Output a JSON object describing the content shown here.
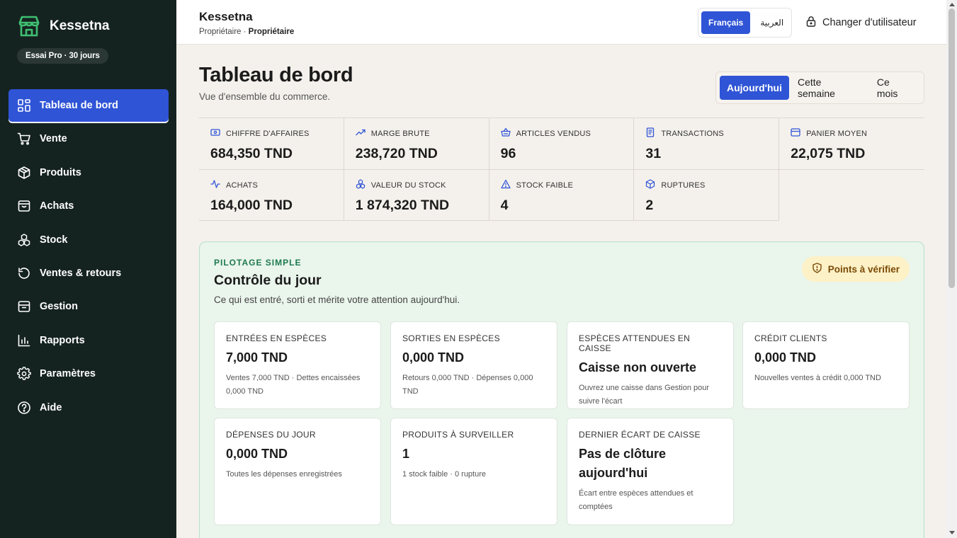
{
  "sidebar": {
    "brand": "Kessetna",
    "trial": "Essai Pro · 30 jours",
    "items": [
      {
        "label": "Tableau de bord",
        "icon": "grid-icon"
      },
      {
        "label": "Vente",
        "icon": "cart-icon"
      },
      {
        "label": "Produits",
        "icon": "box-icon"
      },
      {
        "label": "Achats",
        "icon": "bag-icon"
      },
      {
        "label": "Stock",
        "icon": "boxes-icon"
      },
      {
        "label": "Ventes & retours",
        "icon": "rotate-icon"
      },
      {
        "label": "Gestion",
        "icon": "inbox-icon"
      },
      {
        "label": "Rapports",
        "icon": "bar-chart-icon"
      },
      {
        "label": "Paramètres",
        "icon": "gear-icon"
      },
      {
        "label": "Aide",
        "icon": "help-icon"
      }
    ]
  },
  "topbar": {
    "shop_name": "Kessetna",
    "role_prefix": "Propriétaire · ",
    "role": "Propriétaire",
    "lang_fr": "Français",
    "lang_ar": "العربية",
    "switch_user": "Changer d'utilisateur"
  },
  "page": {
    "title": "Tableau de bord",
    "subtitle": "Vue d'ensemble du commerce."
  },
  "period": {
    "today": "Aujourd'hui",
    "week": "Cette semaine",
    "month": "Ce mois"
  },
  "kpis": [
    {
      "label": "Chiffre d'affaires",
      "value": "684,350 TND"
    },
    {
      "label": "Marge brute",
      "value": "238,720 TND"
    },
    {
      "label": "Articles vendus",
      "value": "96"
    },
    {
      "label": "Transactions",
      "value": "31"
    },
    {
      "label": "Panier moyen",
      "value": "22,075 TND"
    },
    {
      "label": "Achats",
      "value": "164,000 TND"
    },
    {
      "label": "Valeur du stock",
      "value": "1 874,320 TND"
    },
    {
      "label": "Stock faible",
      "value": "4"
    },
    {
      "label": "Ruptures",
      "value": "2"
    }
  ],
  "control": {
    "eyebrow": "PILOTAGE SIMPLE",
    "title": "Contrôle du jour",
    "desc": "Ce qui est entré, sorti et mérite votre attention aujourd'hui.",
    "badge": "Points à vérifier",
    "cards": [
      {
        "label": "Entrées en espèces",
        "value": "7,000 TND",
        "note": "Ventes 7,000 TND · Dettes encaissées 0,000 TND"
      },
      {
        "label": "Sorties en espèces",
        "value": "0,000 TND",
        "note": "Retours 0,000 TND · Dépenses 0,000 TND"
      },
      {
        "label": "Espèces attendues en caisse",
        "value": "Caisse non ouverte",
        "note": "Ouvrez une caisse dans Gestion pour suivre l'écart"
      },
      {
        "label": "Crédit clients",
        "value": "0,000 TND",
        "note": "Nouvelles ventes à crédit 0,000 TND"
      },
      {
        "label": "Dépenses du jour",
        "value": "0,000 TND",
        "note": "Toutes les dépenses enregistrées"
      },
      {
        "label": "Produits à surveiller",
        "value": "1",
        "note": "1 stock faible · 0 rupture"
      },
      {
        "label": "Dernier écart de caisse",
        "value": "Pas de clôture aujourd'hui",
        "note": "Écart entre espèces attendues et comptées"
      }
    ]
  },
  "colors": {
    "sidebar_bg": "#152320",
    "accent": "#2f54d6",
    "brand_green": "#3fbf72",
    "panel_bg": "#eaf5ec",
    "warning_bg": "#fdf1c7"
  }
}
